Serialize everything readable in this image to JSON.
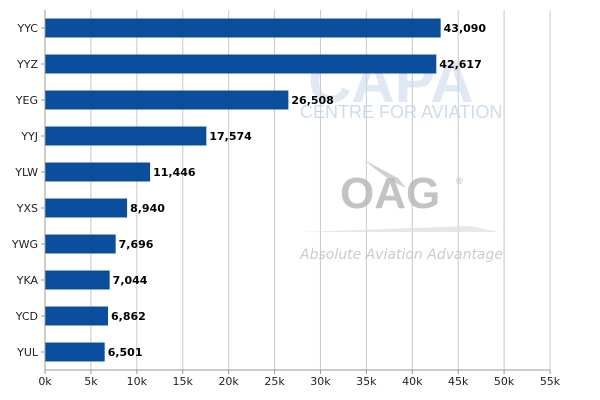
{
  "chart_data": {
    "type": "bar",
    "orientation": "horizontal",
    "categories": [
      "YYC",
      "YYZ",
      "YEG",
      "YYJ",
      "YLW",
      "YXS",
      "YWG",
      "YKA",
      "YCD",
      "YUL"
    ],
    "values": [
      43090,
      42617,
      26508,
      17574,
      11446,
      8940,
      7696,
      7044,
      6862,
      6501
    ],
    "value_labels": [
      "43,090",
      "42,617",
      "26,508",
      "17,574",
      "11,446",
      "8,940",
      "7,696",
      "7,044",
      "6,862",
      "6,501"
    ],
    "xlim": [
      0,
      55000
    ],
    "x_ticks": [
      0,
      5000,
      10000,
      15000,
      20000,
      25000,
      30000,
      35000,
      40000,
      45000,
      50000,
      55000
    ],
    "x_tick_labels": [
      "0k",
      "5k",
      "10k",
      "15k",
      "20k",
      "25k",
      "30k",
      "35k",
      "40k",
      "45k",
      "50k",
      "55k"
    ],
    "title": "",
    "xlabel": "",
    "ylabel": "",
    "grid": "vertical",
    "bar_color": "#0b4f9c",
    "grid_color": "#c8c8c8"
  },
  "watermark": {
    "capa": "CAPA",
    "capa_sub": "CENTRE FOR AVIATION",
    "oag": "OAG",
    "oag_reg": "®",
    "oag_tagline": "Absolute Aviation Advantage",
    "capa_color": "#c7d8ea",
    "oag_color": "#b5b5b5"
  }
}
